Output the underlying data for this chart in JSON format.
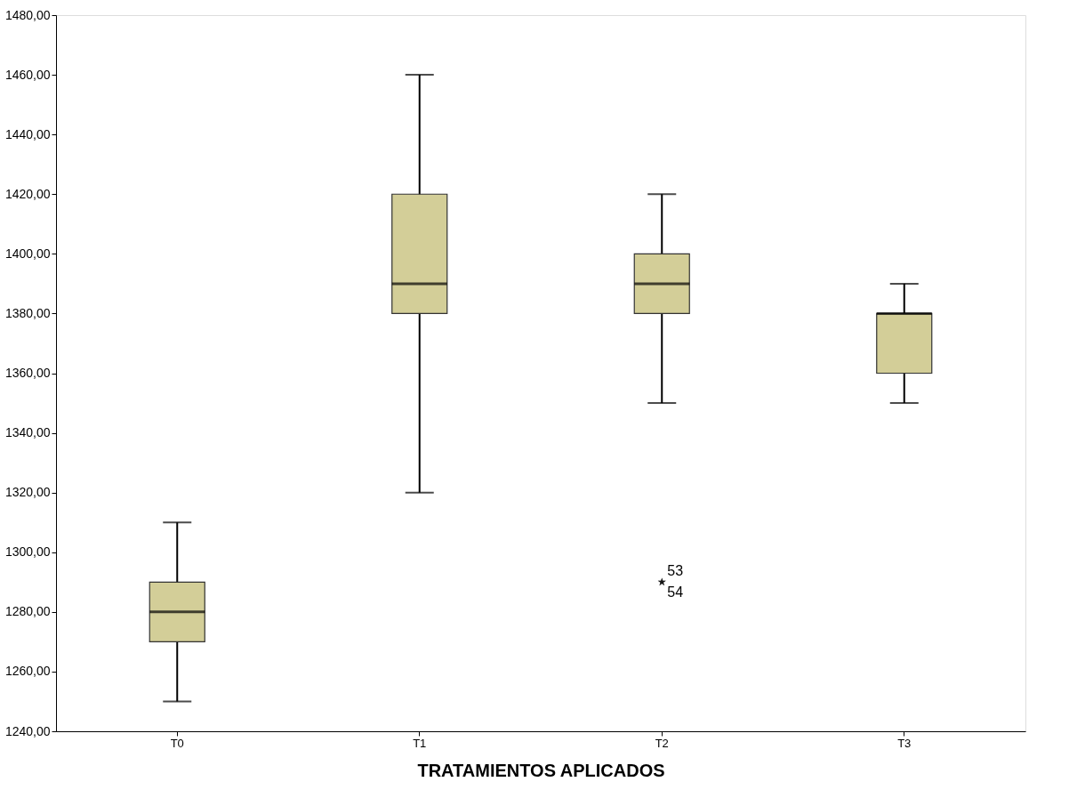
{
  "chart_data": {
    "type": "box",
    "xlabel": "TRATAMIENTOS APLICADOS",
    "categories": [
      "T0",
      "T1",
      "T2",
      "T3"
    ],
    "series": [
      {
        "color": "#d3ce98",
        "boxes": [
          {
            "low": 1250,
            "q1": 1270,
            "median": 1280,
            "q3": 1290,
            "high": 1310
          },
          {
            "low": 1320,
            "q1": 1380,
            "median": 1390,
            "q3": 1420,
            "high": 1460
          },
          {
            "low": 1350,
            "q1": 1380,
            "median": 1390,
            "q3": 1400,
            "high": 1420,
            "outliers": [
              1290,
              1290
            ]
          },
          {
            "low": 1350,
            "q1": 1360,
            "median": 1380,
            "q3": 1380,
            "high": 1390
          }
        ]
      }
    ],
    "ylim": [
      1240,
      1480
    ],
    "yticks": [
      {
        "value": 1240,
        "label": "1240,00"
      },
      {
        "value": 1260,
        "label": "1260,00"
      },
      {
        "value": 1280,
        "label": "1280,00"
      },
      {
        "value": 1300,
        "label": "1300,00"
      },
      {
        "value": 1320,
        "label": "1320,00"
      },
      {
        "value": 1340,
        "label": "1340,00"
      },
      {
        "value": 1360,
        "label": "1360,00"
      },
      {
        "value": 1380,
        "label": "1380,00"
      },
      {
        "value": 1400,
        "label": "1400,00"
      },
      {
        "value": 1420,
        "label": "1420,00"
      },
      {
        "value": 1440,
        "label": "1440,00"
      },
      {
        "value": 1460,
        "label": "1460,00"
      },
      {
        "value": 1480,
        "label": "1480,00"
      }
    ],
    "grid": false,
    "marker": "star",
    "annotations": [
      "53",
      "54"
    ]
  }
}
